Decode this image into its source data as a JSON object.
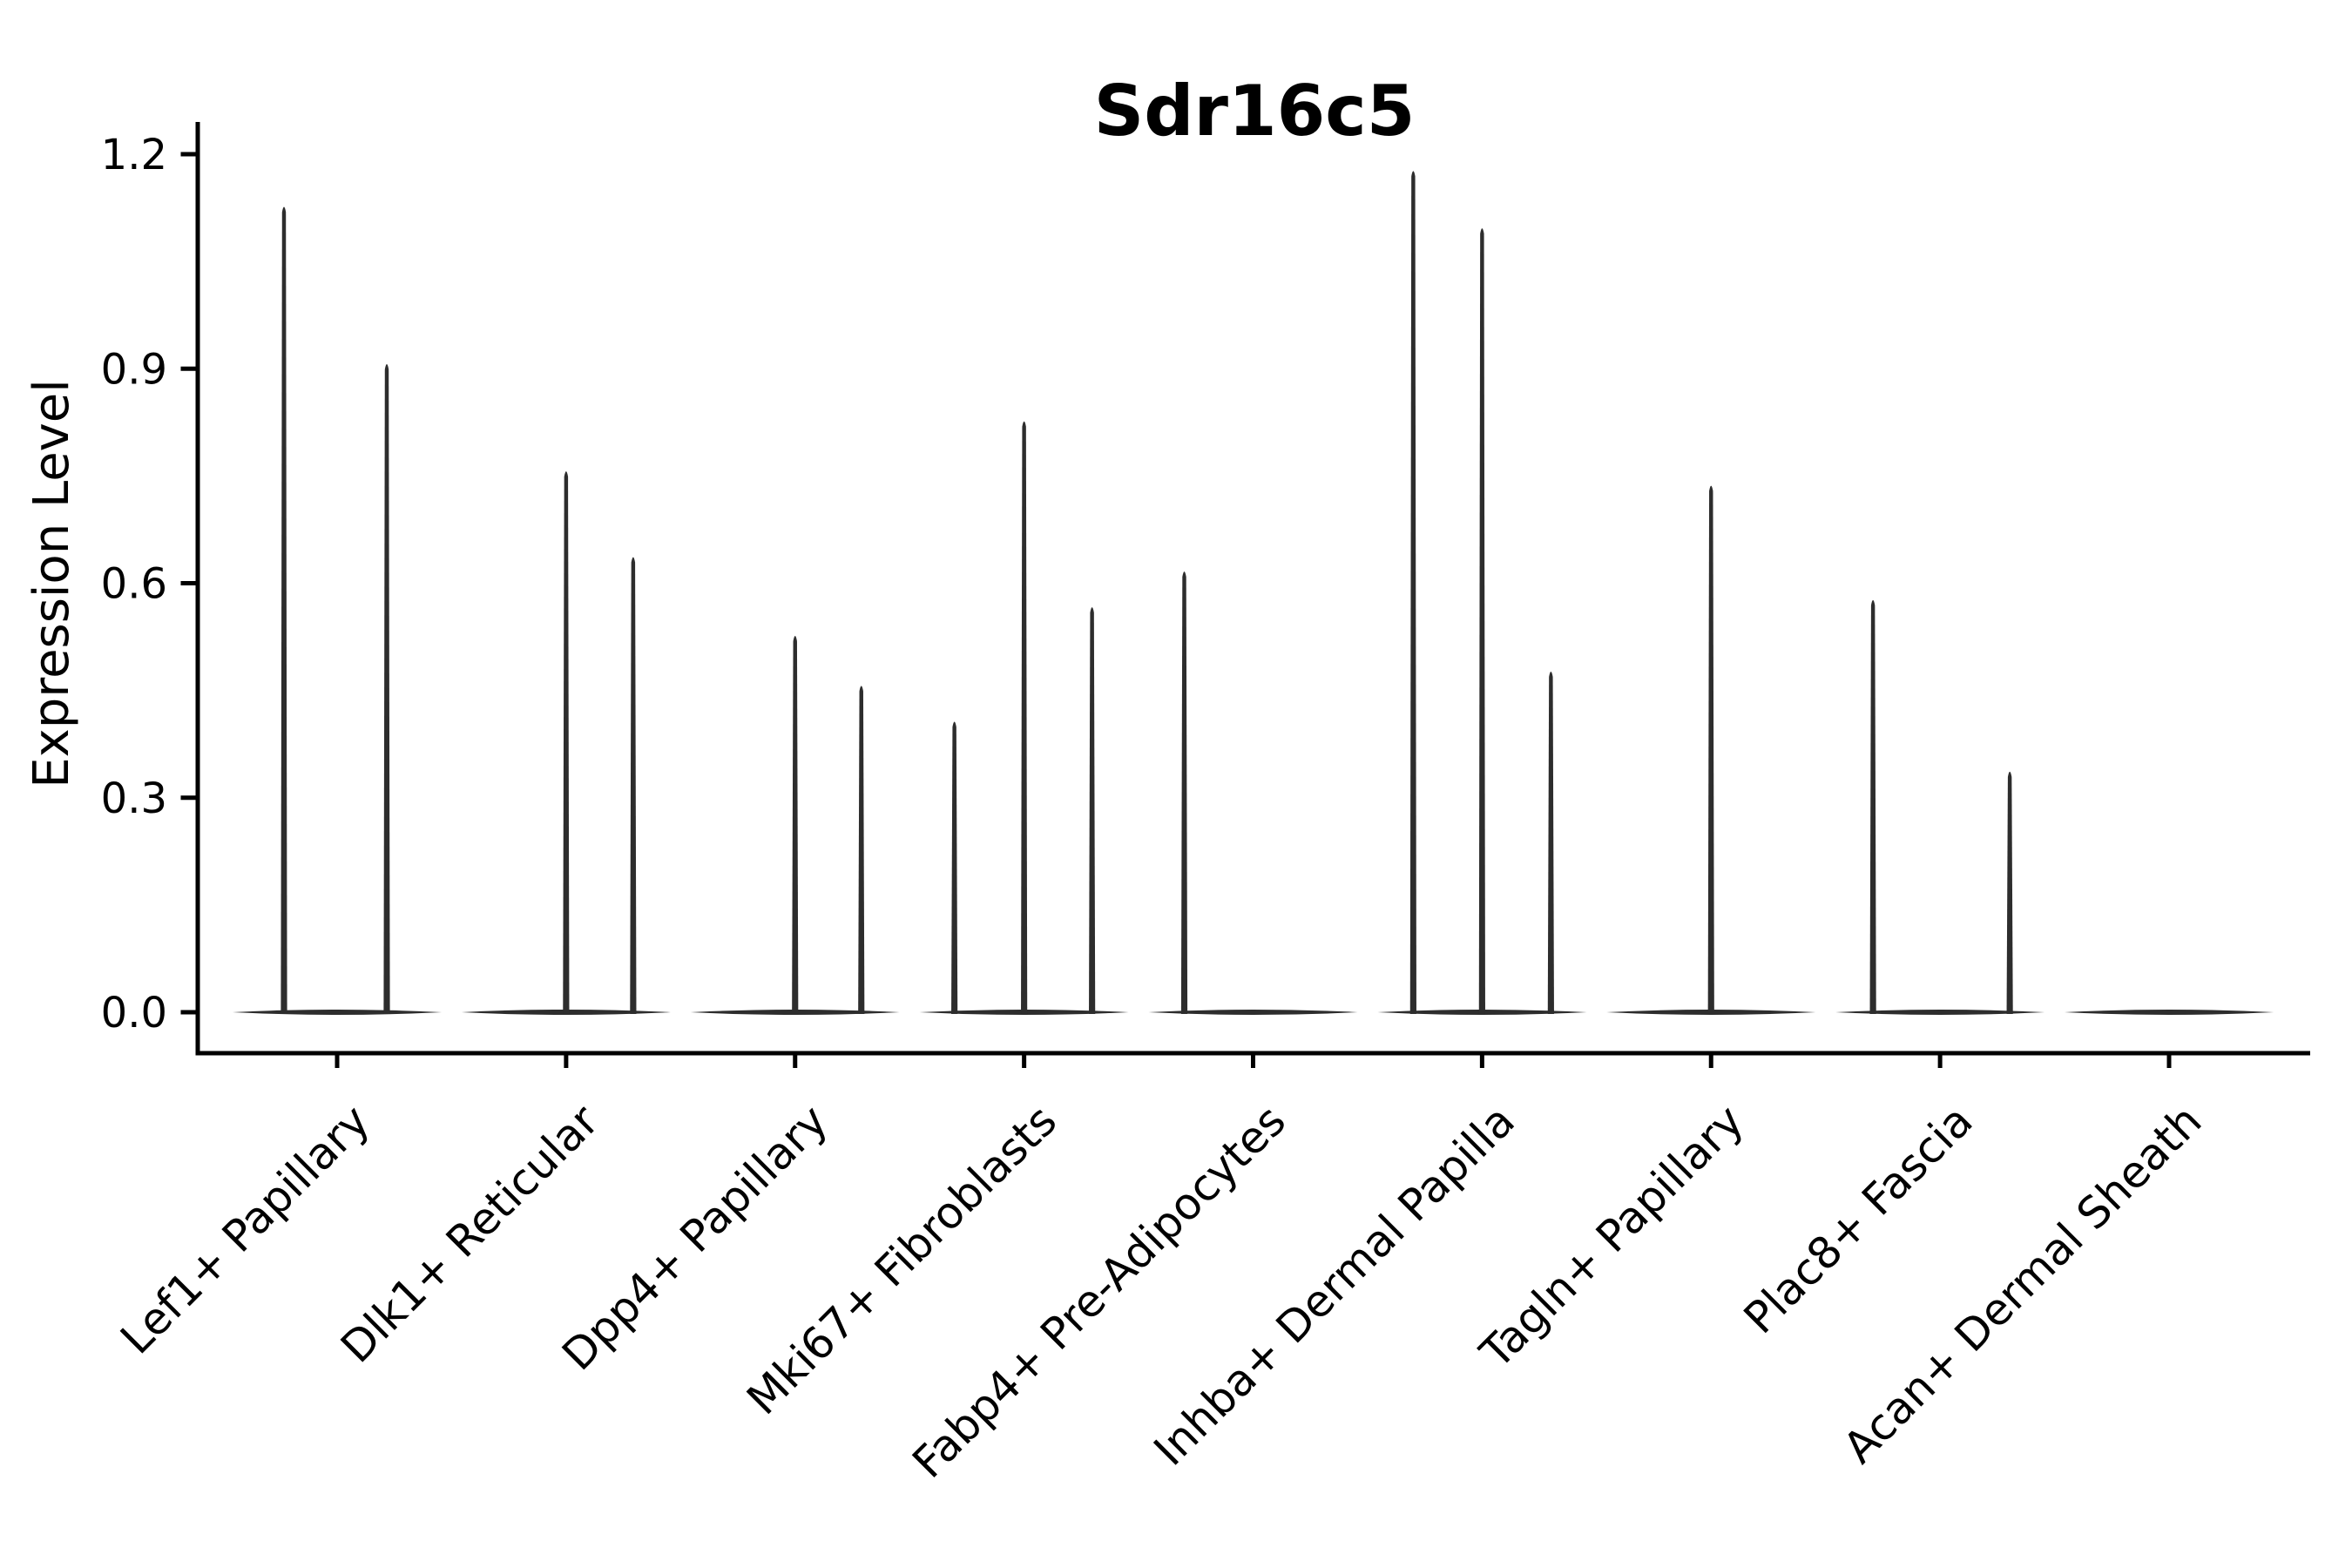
{
  "page": {
    "background": "#ffffff"
  },
  "chart_data": {
    "type": "violin",
    "title": "Sdr16c5",
    "ylabel": "Expression Level",
    "xlabel": "",
    "legend": "none",
    "grid": false,
    "axis_color": "#000000",
    "violin_color": "#2d2d2d",
    "ytick_labels": [
      "0.0",
      "0.3",
      "0.6",
      "0.9",
      "1.2"
    ],
    "ytick_values": [
      0.0,
      0.3,
      0.6,
      0.9,
      1.2
    ],
    "ylim": [
      -0.06,
      1.25
    ],
    "categories": [
      {
        "label": "Lef1+ Papillary",
        "violins": [
          {
            "offset": -61,
            "max": 1.13
          },
          {
            "offset": 57,
            "max": 0.91
          }
        ]
      },
      {
        "label": "Dlk1+ Reticular",
        "violins": [
          {
            "offset": 0,
            "max": 0.76
          },
          {
            "offset": 77,
            "max": 0.64
          }
        ]
      },
      {
        "label": "Dpp4+ Papillary",
        "violins": [
          {
            "offset": 0,
            "max": 0.53
          },
          {
            "offset": 76,
            "max": 0.46
          }
        ]
      },
      {
        "label": "Mki67+ Fibroblasts",
        "violins": [
          {
            "offset": -80,
            "max": 0.41
          },
          {
            "offset": 0,
            "max": 0.83
          },
          {
            "offset": 78,
            "max": 0.57
          }
        ]
      },
      {
        "label": "Fabp4+ Pre-Adipocytes",
        "violins": [
          {
            "offset": -79,
            "max": 0.62
          }
        ]
      },
      {
        "label": "Inhba+ Dermal Papilla",
        "violins": [
          {
            "offset": -79,
            "max": 1.18
          },
          {
            "offset": 0,
            "max": 1.1
          },
          {
            "offset": 79,
            "max": 0.48
          }
        ]
      },
      {
        "label": "Tagln+ Papillary",
        "violins": [
          {
            "offset": 0,
            "max": 0.74
          }
        ]
      },
      {
        "label": "Plac8+ Fascia",
        "violins": [
          {
            "offset": -77,
            "max": 0.58
          },
          {
            "offset": 80,
            "max": 0.34
          }
        ]
      },
      {
        "label": "Acan+ Dermal Sheath",
        "violins": []
      }
    ]
  }
}
